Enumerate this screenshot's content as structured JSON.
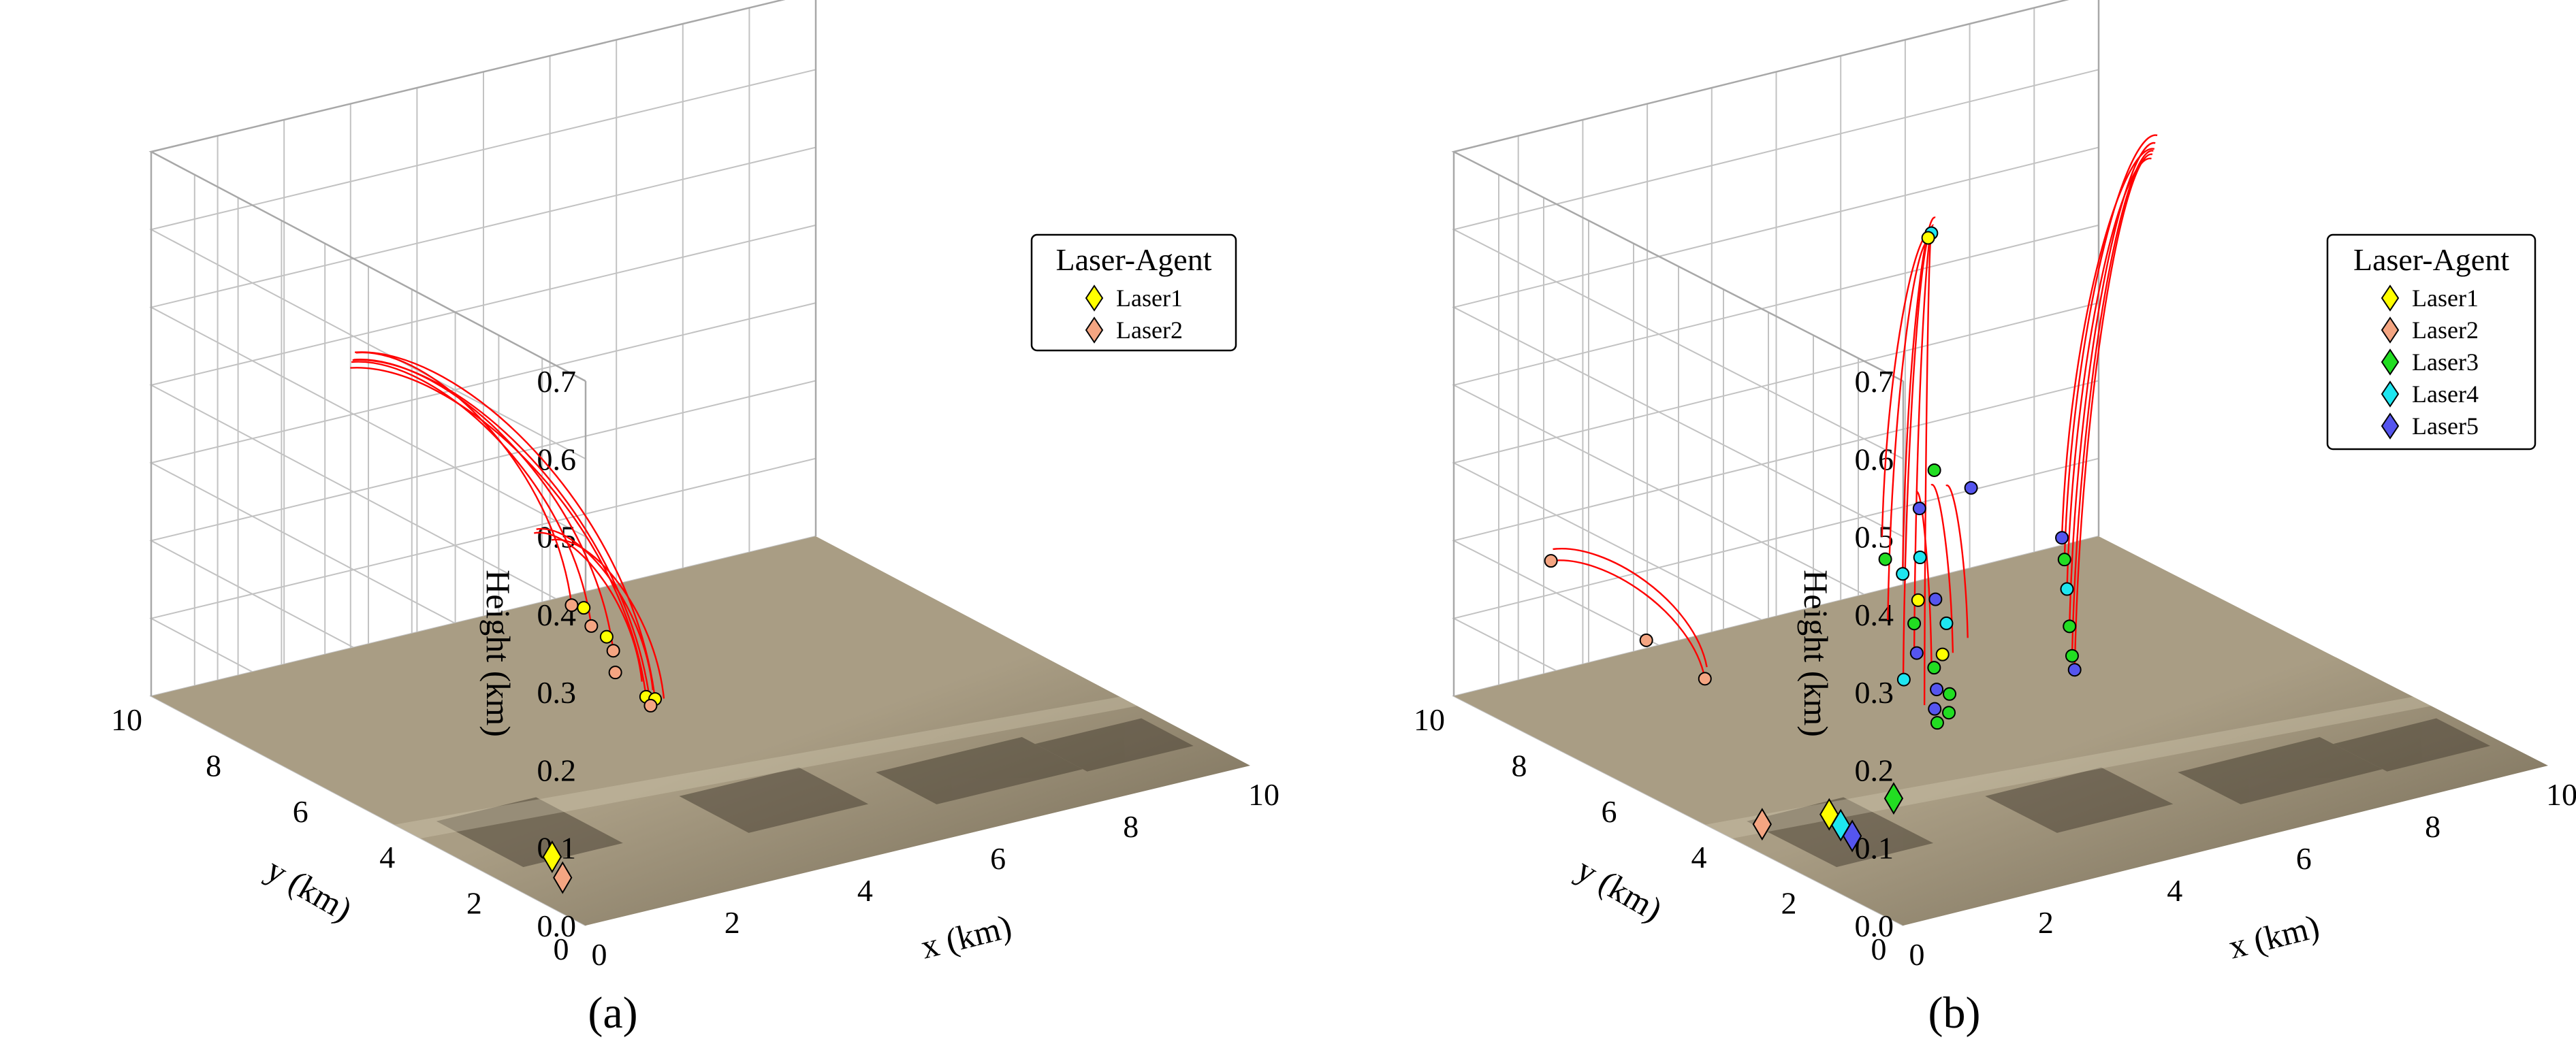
{
  "colors": {
    "trajectory": "#ff0000",
    "Laser1": "#ffff00",
    "Laser2": "#f4a582",
    "Laser3": "#22dd22",
    "Laser4": "#1ee6f0",
    "Laser5": "#5555ee",
    "ground_light": "#a99d84",
    "ground_dark": "#6e6450",
    "grid": "#c2c2c2"
  },
  "chart_data": [
    {
      "type": "scatter3d",
      "panel_label": "(a)",
      "xlabel": "x (km)",
      "ylabel": "y (km)",
      "zlabel": "Height (km)",
      "xlim": [
        0,
        10
      ],
      "ylim": [
        0,
        10
      ],
      "zlim": [
        0,
        0.7
      ],
      "xticks": [
        "0",
        "2",
        "4",
        "6",
        "8",
        "10"
      ],
      "yticks": [
        "0",
        "2",
        "4",
        "6",
        "8",
        "10"
      ],
      "zticks": [
        "0.0",
        "0.1",
        "0.2",
        "0.3",
        "0.4",
        "0.5",
        "0.6",
        "0.7"
      ],
      "grid": true,
      "legend": {
        "title": "Laser-Agent",
        "position": "top-right",
        "entries": [
          "Laser1",
          "Laser2"
        ]
      },
      "lasers": [
        {
          "name": "Laser1",
          "x": 1.0,
          "y": 2.3,
          "z": 0
        },
        {
          "name": "Laser2",
          "x": 0.7,
          "y": 1.6,
          "z": 0
        }
      ],
      "trajectories": [
        {
          "start": [
            1.2,
            7.2,
            0.49
          ],
          "end": [
            4.9,
            6.0,
            0.005
          ]
        },
        {
          "start": [
            1.3,
            7.3,
            0.495
          ],
          "end": [
            5.0,
            6.05,
            0.01
          ]
        },
        {
          "start": [
            1.1,
            7.1,
            0.485
          ],
          "end": [
            4.8,
            5.95,
            0.02
          ]
        },
        {
          "start": [
            1.25,
            7.25,
            0.488
          ],
          "end": [
            4.6,
            6.4,
            0.07
          ]
        },
        {
          "start": [
            1.15,
            7.15,
            0.49
          ],
          "end": [
            4.4,
            6.6,
            0.1
          ]
        },
        {
          "start": [
            1.35,
            7.35,
            0.492
          ],
          "end": [
            4.3,
            6.9,
            0.12
          ]
        },
        {
          "start": [
            3.8,
            7.0,
            0.22
          ],
          "end": [
            4.9,
            6.2,
            0.03
          ]
        },
        {
          "start": [
            3.9,
            7.1,
            0.22
          ],
          "end": [
            5.0,
            6.1,
            0.02
          ]
        },
        {
          "start": [
            4.0,
            6.9,
            0.21
          ],
          "end": [
            5.1,
            6.0,
            0.01
          ]
        }
      ],
      "targets": [
        {
          "x": 4.3,
          "y": 6.9,
          "z": 0.12,
          "laser": "Laser2"
        },
        {
          "x": 4.45,
          "y": 6.85,
          "z": 0.115,
          "laser": "Laser1"
        },
        {
          "x": 4.4,
          "y": 6.6,
          "z": 0.1,
          "laser": "Laser2"
        },
        {
          "x": 4.5,
          "y": 6.4,
          "z": 0.09,
          "laser": "Laser1"
        },
        {
          "x": 4.6,
          "y": 6.4,
          "z": 0.07,
          "laser": "Laser2"
        },
        {
          "x": 4.5,
          "y": 6.2,
          "z": 0.05,
          "laser": "Laser2"
        },
        {
          "x": 4.8,
          "y": 5.95,
          "z": 0.02,
          "laser": "Laser1"
        },
        {
          "x": 5.0,
          "y": 6.05,
          "z": 0.01,
          "laser": "Laser1"
        },
        {
          "x": 4.9,
          "y": 6.0,
          "z": 0.005,
          "laser": "Laser2"
        }
      ]
    },
    {
      "type": "scatter3d",
      "panel_label": "(b)",
      "xlabel": "x (km)",
      "ylabel": "y (km)",
      "zlabel": "Height (km)",
      "xlim": [
        0,
        10
      ],
      "ylim": [
        0,
        10
      ],
      "zlim": [
        0,
        0.7
      ],
      "xticks": [
        "0",
        "2",
        "4",
        "6",
        "8",
        "10"
      ],
      "yticks": [
        "0",
        "2",
        "4",
        "6",
        "8",
        "10"
      ],
      "zticks": [
        "0.0",
        "0.1",
        "0.2",
        "0.3",
        "0.4",
        "0.5",
        "0.6",
        "0.7"
      ],
      "grid": true,
      "legend": {
        "title": "Laser-Agent",
        "position": "top-right",
        "entries": [
          "Laser1",
          "Laser2",
          "Laser3",
          "Laser4",
          "Laser5"
        ]
      },
      "lasers": [
        {
          "name": "Laser1",
          "x": 1.5,
          "y": 3.8,
          "z": 0
        },
        {
          "name": "Laser2",
          "x": 0.6,
          "y": 4.0,
          "z": 0
        },
        {
          "name": "Laser3",
          "x": 2.5,
          "y": 3.8,
          "z": 0
        },
        {
          "name": "Laser4",
          "x": 1.4,
          "y": 3.4,
          "z": 0
        },
        {
          "name": "Laser5",
          "x": 1.3,
          "y": 3.0,
          "z": 0
        }
      ],
      "trajectories": [
        {
          "start": [
            0.6,
            8.7,
            0.2
          ],
          "end": [
            2.5,
            8.0,
            0.03
          ]
        },
        {
          "start": [
            0.7,
            8.8,
            0.21
          ],
          "end": [
            2.6,
            8.1,
            0.04
          ]
        },
        {
          "start": [
            6.5,
            8.7,
            0.5
          ],
          "end": [
            4.6,
            6.6,
            0.03
          ]
        },
        {
          "start": [
            6.6,
            8.8,
            0.505
          ],
          "end": [
            4.7,
            6.5,
            0.06
          ]
        },
        {
          "start": [
            6.4,
            8.6,
            0.495
          ],
          "end": [
            4.5,
            6.8,
            0.1
          ]
        },
        {
          "start": [
            6.7,
            8.9,
            0.51
          ],
          "end": [
            4.8,
            6.9,
            0.15
          ]
        },
        {
          "start": [
            6.55,
            8.75,
            0.5
          ],
          "end": [
            4.55,
            7.0,
            0.2
          ]
        },
        {
          "start": [
            6.5,
            8.7,
            0.5
          ],
          "end": [
            4.65,
            6.2,
            0.005
          ]
        },
        {
          "start": [
            10.5,
            9.5,
            0.5
          ],
          "end": [
            6.8,
            6.0,
            0.03
          ]
        },
        {
          "start": [
            10.6,
            9.6,
            0.505
          ],
          "end": [
            6.9,
            6.2,
            0.06
          ]
        },
        {
          "start": [
            10.4,
            9.4,
            0.495
          ],
          "end": [
            7.0,
            6.4,
            0.1
          ]
        },
        {
          "start": [
            10.7,
            9.7,
            0.51
          ],
          "end": [
            7.1,
            6.6,
            0.13
          ]
        },
        {
          "start": [
            10.55,
            9.55,
            0.5
          ],
          "end": [
            7.2,
            6.8,
            0.15
          ]
        },
        {
          "start": [
            10.45,
            9.45,
            0.498
          ],
          "end": [
            6.7,
            5.8,
            0.02
          ]
        },
        {
          "start": [
            5.5,
            7.6,
            0.22
          ],
          "end": [
            4.9,
            6.4,
            0.04
          ]
        },
        {
          "start": [
            5.8,
            7.7,
            0.22
          ],
          "end": [
            5.3,
            6.5,
            0.05
          ]
        },
        {
          "start": [
            6.1,
            7.8,
            0.21
          ],
          "end": [
            5.6,
            6.6,
            0.06
          ]
        }
      ],
      "targets": [
        {
          "x": 0.6,
          "y": 8.7,
          "z": 0.2,
          "laser": "Laser2"
        },
        {
          "x": 1.8,
          "y": 8.3,
          "z": 0.085,
          "laser": "Laser2"
        },
        {
          "x": 2.5,
          "y": 8.0,
          "z": 0.03,
          "laser": "Laser2"
        },
        {
          "x": 6.5,
          "y": 8.7,
          "z": 0.5,
          "laser": "Laser4"
        },
        {
          "x": 6.45,
          "y": 8.7,
          "z": 0.495,
          "laser": "Laser1"
        },
        {
          "x": 5.5,
          "y": 7.2,
          "z": 0.26,
          "laser": "Laser3"
        },
        {
          "x": 5.2,
          "y": 7.1,
          "z": 0.22,
          "laser": "Laser5"
        },
        {
          "x": 6.0,
          "y": 7.1,
          "z": 0.23,
          "laser": "Laser5"
        },
        {
          "x": 4.6,
          "y": 7.0,
          "z": 0.17,
          "laser": "Laser3"
        },
        {
          "x": 5.0,
          "y": 6.8,
          "z": 0.17,
          "laser": "Laser4"
        },
        {
          "x": 4.8,
          "y": 6.9,
          "z": 0.15,
          "laser": "Laser4"
        },
        {
          "x": 5.1,
          "y": 6.6,
          "z": 0.12,
          "laser": "Laser5"
        },
        {
          "x": 4.9,
          "y": 6.7,
          "z": 0.12,
          "laser": "Laser1"
        },
        {
          "x": 4.7,
          "y": 6.5,
          "z": 0.1,
          "laser": "Laser3"
        },
        {
          "x": 5.2,
          "y": 6.5,
          "z": 0.09,
          "laser": "Laser4"
        },
        {
          "x": 4.6,
          "y": 6.3,
          "z": 0.07,
          "laser": "Laser5"
        },
        {
          "x": 5.0,
          "y": 6.3,
          "z": 0.06,
          "laser": "Laser1"
        },
        {
          "x": 4.8,
          "y": 6.2,
          "z": 0.05,
          "laser": "Laser3"
        },
        {
          "x": 4.4,
          "y": 6.3,
          "z": 0.04,
          "laser": "Laser4"
        },
        {
          "x": 4.7,
          "y": 6.0,
          "z": 0.03,
          "laser": "Laser5"
        },
        {
          "x": 4.9,
          "y": 6.0,
          "z": 0.02,
          "laser": "Laser3"
        },
        {
          "x": 4.6,
          "y": 5.9,
          "z": 0.01,
          "laser": "Laser5"
        },
        {
          "x": 4.75,
          "y": 5.8,
          "z": 0.005,
          "laser": "Laser3"
        },
        {
          "x": 4.5,
          "y": 5.7,
          "z": 0.0,
          "laser": "Laser3"
        },
        {
          "x": 7.2,
          "y": 6.8,
          "z": 0.15,
          "laser": "Laser5"
        },
        {
          "x": 7.1,
          "y": 6.6,
          "z": 0.13,
          "laser": "Laser3"
        },
        {
          "x": 7.0,
          "y": 6.4,
          "z": 0.1,
          "laser": "Laser4"
        },
        {
          "x": 6.9,
          "y": 6.2,
          "z": 0.06,
          "laser": "Laser3"
        },
        {
          "x": 6.8,
          "y": 6.0,
          "z": 0.03,
          "laser": "Laser3"
        },
        {
          "x": 6.7,
          "y": 5.8,
          "z": 0.02,
          "laser": "Laser5"
        }
      ]
    }
  ]
}
